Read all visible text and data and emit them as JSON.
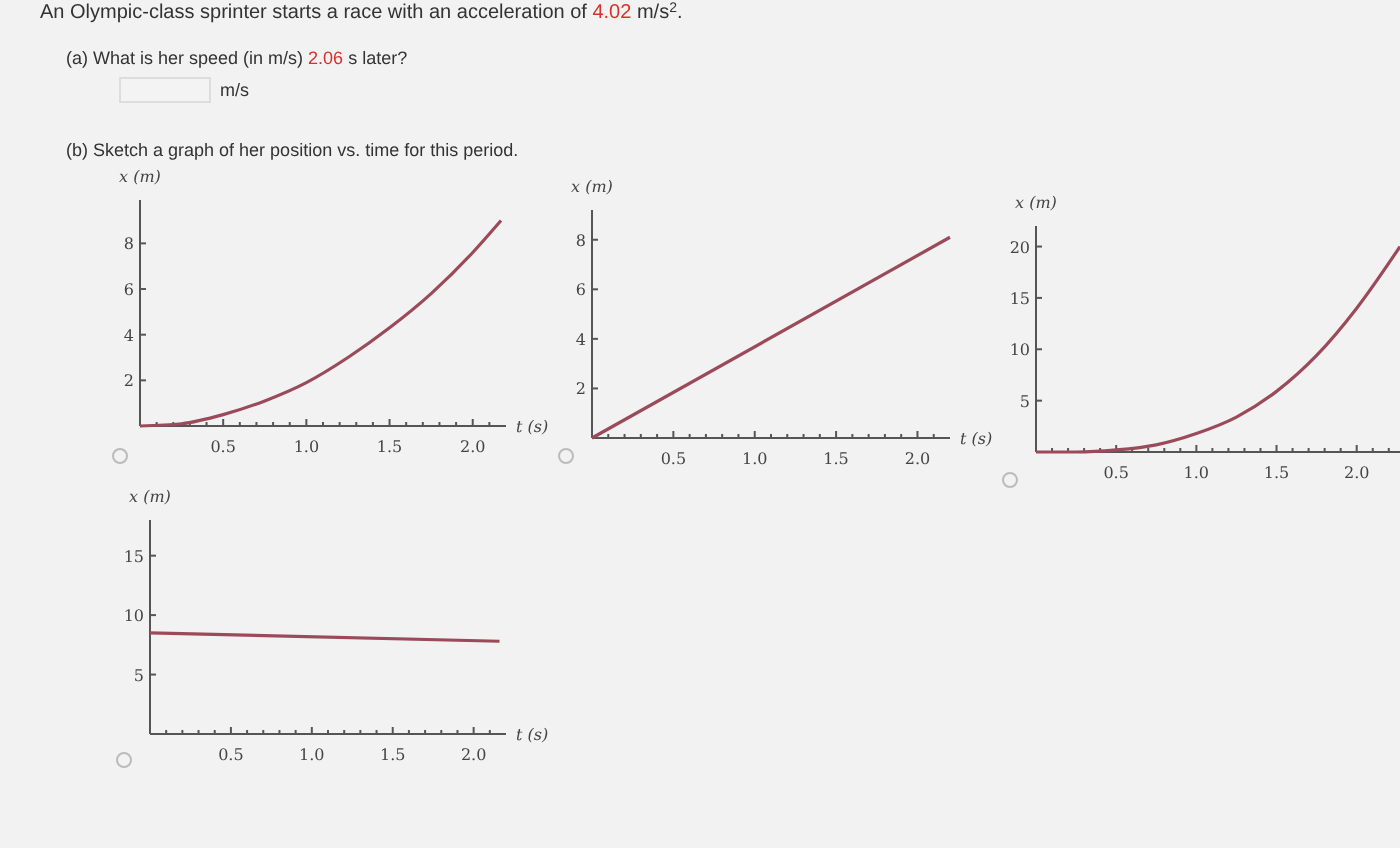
{
  "chart_data": [
    {
      "type": "line",
      "title": "An Olympic-class sprinter starts a race with an acceleration of 4.02 m/s$^{2}$.",
      "annotations": [
        "(a) What is her speed (in m/s) 2.06 s later?",
        "m/s",
        "(b) Sketch a graph of her position vs. time for this period."
      ],
      "xlabel": "t (s)",
      "ylabel": "x (m)",
      "xlim": [
        0,
        2.2
      ],
      "ylim": [
        0,
        9.9
      ],
      "xticks": [
        {
          "value": 0.1,
          "label": null
        },
        {
          "value": 0.2,
          "label": null
        },
        {
          "value": 0.3,
          "label": null
        },
        {
          "value": 0.4,
          "label": null
        },
        {
          "value": 0.5,
          "label": "0.5"
        },
        {
          "value": 0.6,
          "label": null
        },
        {
          "value": 0.7,
          "label": null
        },
        {
          "value": 0.8,
          "label": null
        },
        {
          "value": 0.9,
          "label": null
        },
        {
          "value": 1,
          "label": "1.0"
        },
        {
          "value": 1.1,
          "label": null
        },
        {
          "value": 1.2,
          "label": null
        },
        {
          "value": 1.3,
          "label": null
        },
        {
          "value": 1.4,
          "label": null
        },
        {
          "value": 1.5,
          "label": "1.5"
        },
        {
          "value": 1.6,
          "label": null
        },
        {
          "value": 1.7,
          "label": null
        },
        {
          "value": 1.8,
          "label": null
        },
        {
          "value": 1.9,
          "label": null
        },
        {
          "value": 2,
          "label": "2.0"
        },
        {
          "value": 2.1,
          "label": null
        }
      ],
      "yticks": [
        2,
        4,
        6,
        8
      ],
      "series": [
        {
          "color": "#9b4a5a",
          "x": [
            0,
            0.25,
            0.5,
            0.75,
            1,
            1.25,
            1.5,
            1.75,
            2,
            2.17
          ],
          "values": [
            0,
            0.1,
            0.5,
            1.1,
            1.9,
            3,
            4.3,
            5.8,
            7.6,
            9
          ]
        }
      ]
    },
    {
      "type": "line",
      "xlabel": "t (s)",
      "ylabel": "x (m)",
      "xlim": [
        0,
        2.2
      ],
      "ylim": [
        0,
        9.2
      ],
      "xticks": [
        {
          "value": 0.1,
          "label": null
        },
        {
          "value": 0.2,
          "label": null
        },
        {
          "value": 0.3,
          "label": null
        },
        {
          "value": 0.4,
          "label": null
        },
        {
          "value": 0.5,
          "label": "0.5"
        },
        {
          "value": 0.6,
          "label": null
        },
        {
          "value": 0.7,
          "label": null
        },
        {
          "value": 0.8,
          "label": null
        },
        {
          "value": 0.9,
          "label": null
        },
        {
          "value": 1,
          "label": "1.0"
        },
        {
          "value": 1.1,
          "label": null
        },
        {
          "value": 1.2,
          "label": null
        },
        {
          "value": 1.3,
          "label": null
        },
        {
          "value": 1.4,
          "label": null
        },
        {
          "value": 1.5,
          "label": "1.5"
        },
        {
          "value": 1.6,
          "label": null
        },
        {
          "value": 1.7,
          "label": null
        },
        {
          "value": 1.8,
          "label": null
        },
        {
          "value": 1.9,
          "label": null
        },
        {
          "value": 2,
          "label": "2.0"
        },
        {
          "value": 2.1,
          "label": null
        }
      ],
      "yticks": [
        2,
        4,
        6,
        8
      ],
      "series": [
        {
          "color": "#9b4a5a",
          "x": [
            0,
            2.2
          ],
          "values": [
            0,
            8.1
          ]
        }
      ]
    },
    {
      "type": "line",
      "ylabel": "x (m)",
      "xlim": [
        0,
        2.27
      ],
      "ylim": [
        0,
        22
      ],
      "xticks": [
        {
          "value": 0.1,
          "label": null
        },
        {
          "value": 0.2,
          "label": null
        },
        {
          "value": 0.3,
          "label": null
        },
        {
          "value": 0.4,
          "label": null
        },
        {
          "value": 0.5,
          "label": "0.5"
        },
        {
          "value": 0.6,
          "label": null
        },
        {
          "value": 0.7,
          "label": null
        },
        {
          "value": 0.8,
          "label": null
        },
        {
          "value": 0.9,
          "label": null
        },
        {
          "value": 1,
          "label": "1.0"
        },
        {
          "value": 1.1,
          "label": null
        },
        {
          "value": 1.2,
          "label": null
        },
        {
          "value": 1.3,
          "label": null
        },
        {
          "value": 1.4,
          "label": null
        },
        {
          "value": 1.5,
          "label": "1.5"
        },
        {
          "value": 1.6,
          "label": null
        },
        {
          "value": 1.7,
          "label": null
        },
        {
          "value": 1.8,
          "label": null
        },
        {
          "value": 1.9,
          "label": null
        },
        {
          "value": 2,
          "label": "2.0"
        },
        {
          "value": 2.1,
          "label": null
        },
        {
          "value": 2.2,
          "label": null
        }
      ],
      "yticks": [
        5,
        10,
        15,
        20
      ],
      "series": [
        {
          "color": "#9b4a5a",
          "x": [
            0,
            0.25,
            0.5,
            0.75,
            1,
            1.25,
            1.5,
            1.75,
            2,
            2.27
          ],
          "values": [
            0,
            0,
            0.2,
            0.7,
            1.8,
            3.4,
            5.9,
            9.4,
            14,
            20
          ]
        }
      ]
    },
    {
      "type": "line",
      "xlabel": "t (s)",
      "ylabel": "x (m)",
      "xlim": [
        0,
        2.2
      ],
      "ylim": [
        0,
        18
      ],
      "xticks": [
        {
          "value": 0.1,
          "label": null
        },
        {
          "value": 0.2,
          "label": null
        },
        {
          "value": 0.3,
          "label": null
        },
        {
          "value": 0.4,
          "label": null
        },
        {
          "value": 0.5,
          "label": "0.5"
        },
        {
          "value": 0.6,
          "label": null
        },
        {
          "value": 0.7,
          "label": null
        },
        {
          "value": 0.8,
          "label": null
        },
        {
          "value": 0.9,
          "label": null
        },
        {
          "value": 1,
          "label": "1.0"
        },
        {
          "value": 1.1,
          "label": null
        },
        {
          "value": 1.2,
          "label": null
        },
        {
          "value": 1.3,
          "label": null
        },
        {
          "value": 1.4,
          "label": null
        },
        {
          "value": 1.5,
          "label": "1.5"
        },
        {
          "value": 1.6,
          "label": null
        },
        {
          "value": 1.7,
          "label": null
        },
        {
          "value": 1.8,
          "label": null
        },
        {
          "value": 1.9,
          "label": null
        },
        {
          "value": 2,
          "label": "2.0"
        },
        {
          "value": 2.1,
          "label": null
        }
      ],
      "yticks": [
        5,
        10,
        15
      ],
      "series": [
        {
          "color": "#9b4a5a",
          "x": [
            0,
            2.16
          ],
          "values": [
            8.5,
            7.8
          ]
        }
      ]
    }
  ]
}
